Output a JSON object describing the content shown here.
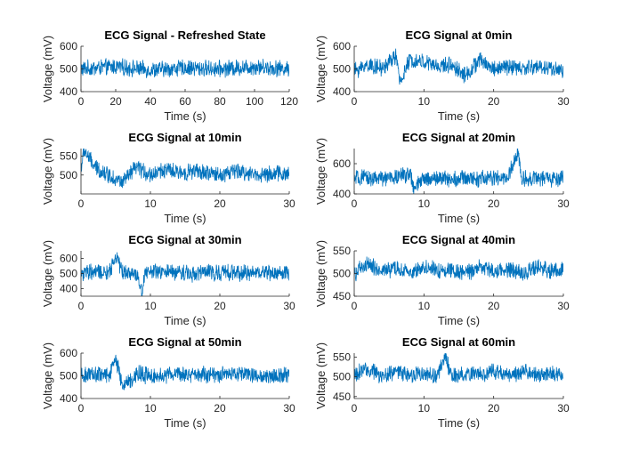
{
  "chart_data": [
    {
      "type": "line",
      "title": "ECG Signal - Refreshed State",
      "xlabel": "Time (s)",
      "ylabel": "Voltage (mV)",
      "xlim": [
        0,
        120
      ],
      "ylim": [
        400,
        600
      ],
      "xticks": [
        0,
        20,
        40,
        60,
        80,
        100,
        120
      ],
      "yticks": [
        400,
        500,
        600
      ],
      "color": "#0072BD",
      "series": [
        {
          "x": [
            0,
            20,
            40,
            60,
            80,
            100,
            120
          ],
          "y": [
            500,
            510,
            495,
            505,
            500,
            510,
            500
          ]
        }
      ]
    },
    {
      "type": "line",
      "title": "ECG Signal at 0min",
      "xlabel": "Time (s)",
      "ylabel": "Voltage (mV)",
      "xlim": [
        0,
        30
      ],
      "ylim": [
        400,
        600
      ],
      "xticks": [
        0,
        10,
        20,
        30
      ],
      "yticks": [
        400,
        500,
        600
      ],
      "color": "#0072BD",
      "series": [
        {
          "x": [
            0,
            2,
            4,
            6,
            6.5,
            8,
            10,
            12,
            14,
            16,
            18,
            20,
            22,
            24,
            26,
            28,
            30
          ],
          "y": [
            490,
            520,
            500,
            560,
            440,
            540,
            530,
            510,
            520,
            470,
            540,
            500,
            510,
            500,
            510,
            505,
            490
          ]
        }
      ]
    },
    {
      "type": "line",
      "title": "ECG Signal at 10min",
      "xlabel": "Time (s)",
      "ylabel": "Voltage (mV)",
      "xlim": [
        0,
        30
      ],
      "ylim": [
        450,
        570
      ],
      "xticks": [
        0,
        10,
        20,
        30
      ],
      "yticks": [
        500,
        550
      ],
      "color": "#0072BD",
      "series": [
        {
          "x": [
            0,
            0.5,
            2,
            4,
            6,
            8,
            10,
            12,
            14,
            16,
            18,
            20,
            22,
            24,
            26,
            28,
            30
          ],
          "y": [
            520,
            565,
            520,
            500,
            480,
            520,
            500,
            515,
            505,
            510,
            505,
            500,
            510,
            505,
            500,
            505,
            500
          ]
        }
      ]
    },
    {
      "type": "line",
      "title": "ECG Signal at 20min",
      "xlabel": "Time (s)",
      "ylabel": "Voltage (mV)",
      "xlim": [
        0,
        30
      ],
      "ylim": [
        400,
        700
      ],
      "xticks": [
        0,
        10,
        20,
        30
      ],
      "yticks": [
        400,
        600
      ],
      "color": "#0072BD",
      "series": [
        {
          "x": [
            0,
            2,
            4,
            6,
            8,
            8.5,
            10,
            12,
            14,
            16,
            18,
            20,
            22,
            23.5,
            24,
            26,
            28,
            30
          ],
          "y": [
            500,
            505,
            500,
            510,
            540,
            430,
            500,
            505,
            500,
            505,
            500,
            505,
            500,
            680,
            500,
            505,
            500,
            500
          ]
        }
      ]
    },
    {
      "type": "line",
      "title": "ECG Signal at 30min",
      "xlabel": "Time (s)",
      "ylabel": "Voltage (mV)",
      "xlim": [
        0,
        30
      ],
      "ylim": [
        350,
        650
      ],
      "xticks": [
        0,
        10,
        20,
        30
      ],
      "yticks": [
        400,
        500,
        600
      ],
      "color": "#0072BD",
      "series": [
        {
          "x": [
            0,
            2,
            4,
            5,
            6,
            8,
            8.8,
            9.2,
            10,
            12,
            14,
            16,
            18,
            20,
            22,
            24,
            26,
            28,
            30
          ],
          "y": [
            500,
            510,
            500,
            620,
            510,
            500,
            370,
            520,
            510,
            505,
            510,
            500,
            510,
            505,
            510,
            500,
            510,
            505,
            500
          ]
        }
      ]
    },
    {
      "type": "line",
      "title": "ECG Signal at 40min",
      "xlabel": "Time (s)",
      "ylabel": "Voltage (mV)",
      "xlim": [
        0,
        30
      ],
      "ylim": [
        450,
        550
      ],
      "xticks": [
        0,
        10,
        20,
        30
      ],
      "yticks": [
        450,
        500,
        550
      ],
      "color": "#0072BD",
      "series": [
        {
          "x": [
            0,
            2,
            4,
            6,
            8,
            10,
            12,
            14,
            16,
            18,
            20,
            22,
            24,
            26,
            28,
            30
          ],
          "y": [
            500,
            520,
            505,
            510,
            500,
            515,
            505,
            510,
            500,
            515,
            505,
            510,
            500,
            515,
            505,
            510
          ]
        }
      ]
    },
    {
      "type": "line",
      "title": "ECG Signal at 50min",
      "xlabel": "Time (s)",
      "ylabel": "Voltage (mV)",
      "xlim": [
        0,
        30
      ],
      "ylim": [
        400,
        600
      ],
      "xticks": [
        0,
        10,
        20,
        30
      ],
      "yticks": [
        400,
        500,
        600
      ],
      "color": "#0072BD",
      "series": [
        {
          "x": [
            0,
            2,
            4,
            5,
            6,
            8,
            10,
            12,
            14,
            16,
            18,
            20,
            22,
            24,
            26,
            28,
            30
          ],
          "y": [
            500,
            510,
            500,
            580,
            450,
            510,
            500,
            505,
            510,
            500,
            505,
            500,
            510,
            505,
            500,
            505,
            500
          ]
        }
      ]
    },
    {
      "type": "line",
      "title": "ECG Signal at 60min",
      "xlabel": "Time (s)",
      "ylabel": "Voltage (mV)",
      "xlim": [
        0,
        30
      ],
      "ylim": [
        445,
        560
      ],
      "xticks": [
        0,
        10,
        20,
        30
      ],
      "yticks": [
        450,
        500,
        550
      ],
      "color": "#0072BD",
      "series": [
        {
          "x": [
            0,
            2,
            4,
            6,
            8,
            10,
            12,
            13,
            14,
            16,
            18,
            20,
            22,
            24,
            26,
            28,
            30
          ],
          "y": [
            505,
            520,
            500,
            515,
            505,
            510,
            500,
            555,
            500,
            510,
            505,
            515,
            505,
            510,
            505,
            510,
            505
          ]
        }
      ]
    }
  ]
}
